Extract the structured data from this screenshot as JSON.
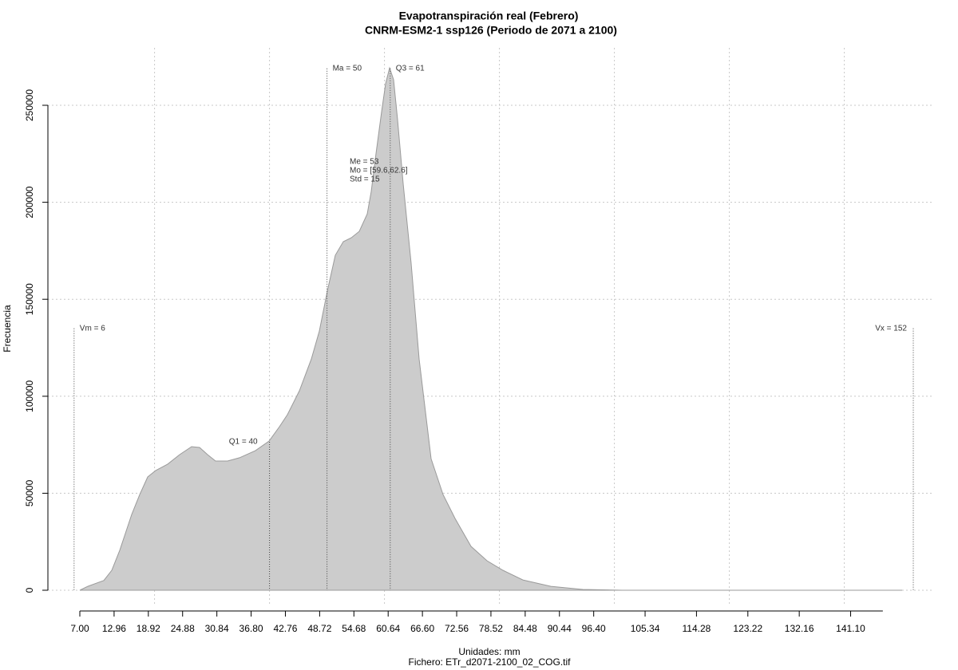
{
  "chart_data": {
    "type": "area",
    "title": "Evapotranspiración real (Febrero)",
    "subtitle": "CNRM-ESM2-1 ssp126 (Periodo de 2071 a 2100)",
    "x_label": "Unidades: mm",
    "file_label": "Fichero: ETr_d2071-2100_02_COG.tif",
    "y_label": "Frecuencia",
    "x": [
      7,
      8.39,
      11.17,
      12.56,
      13.94,
      16.03,
      17.42,
      18.81,
      20.19,
      22.28,
      24.36,
      26.44,
      27.83,
      29.22,
      30.61,
      32.69,
      34.78,
      37.56,
      39.92,
      41.72,
      43.11,
      45.19,
      47.28,
      48.67,
      50.06,
      51.44,
      52.83,
      54.22,
      55.61,
      57.0,
      57.69,
      58.39,
      59.5,
      60.19,
      60.89,
      61.58,
      62.28,
      63.25,
      64.64,
      66.03,
      68.11,
      70.19,
      72.28,
      75.06,
      77.83,
      80.61,
      84.08,
      88.94,
      94.5,
      101.44,
      150.06
    ],
    "values": [
      0,
      2000,
      5000,
      10300,
      20600,
      39100,
      49300,
      58400,
      61700,
      65000,
      69900,
      74000,
      73600,
      69900,
      66600,
      66600,
      68300,
      72000,
      76900,
      84300,
      90500,
      102800,
      119200,
      133600,
      154200,
      172700,
      179700,
      181700,
      185000,
      194000,
      205500,
      222000,
      246700,
      261100,
      269300,
      263200,
      242600,
      209700,
      168600,
      119200,
      67800,
      49300,
      37000,
      22600,
      15200,
      10300,
      5300,
      2000,
      400,
      0,
      0
    ],
    "color": "#cccccc",
    "line_color": "#9a9a9a",
    "xlim": [
      7,
      146.7
    ],
    "ylim": [
      0,
      280000
    ],
    "xticks": [
      {
        "value": 7,
        "label": "7.00"
      },
      12.96,
      18.92,
      24.88,
      30.84,
      36.8,
      42.76,
      48.72,
      54.68,
      60.64,
      66.6,
      72.56,
      78.52,
      84.48,
      90.44,
      {
        "value": 96.4,
        "label": "96.40"
      },
      105.34,
      114.28,
      123.22,
      132.16,
      {
        "value": 141.1,
        "label": "141.10"
      }
    ],
    "yticks": [
      0,
      50000,
      100000,
      150000,
      200000,
      250000
    ],
    "xgrid": [
      20,
      40,
      60,
      80,
      100,
      120,
      140
    ],
    "grid": true,
    "markers": [
      {
        "value": 6,
        "label": "Vm = 6",
        "y": 135000
      },
      {
        "value": 40,
        "label": "Q1 = 40",
        "y": 76500
      },
      {
        "value": 50,
        "label": "Ma = 50",
        "y": 269000
      },
      {
        "value": 61,
        "label": "Q3 = 61",
        "y": 269000
      },
      {
        "value": 152,
        "label": "Vx = 152",
        "y": 135000
      }
    ],
    "stats": [
      "Me = 53",
      "Mo = [59.6,62.6]",
      "Std = 15"
    ]
  }
}
